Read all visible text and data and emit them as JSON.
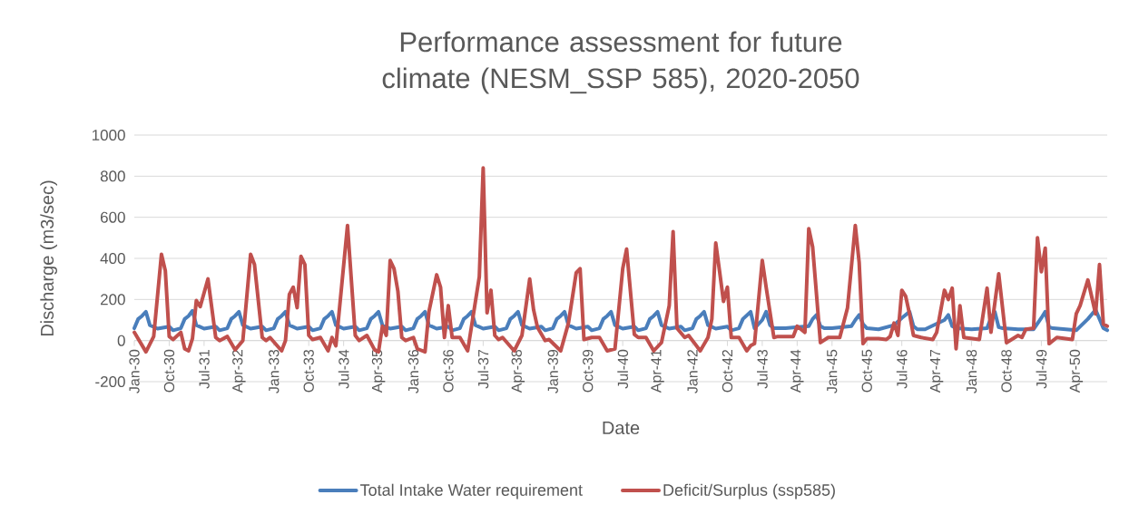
{
  "chart_data": {
    "type": "line",
    "title": "Performance assessment for future climate (NESM_SSP 585), 2020-2050",
    "xlabel": "Date",
    "ylabel": "Discharge (m3/sec)",
    "xlim": [
      "2030-01",
      "2050-12"
    ],
    "ylim": [
      -200,
      1000
    ],
    "xticks": [
      {
        "value": "2030-01",
        "label": "Jan-30"
      },
      {
        "value": "2030-10",
        "label": "Oct-30"
      },
      {
        "value": "2031-07",
        "label": "Jul-31"
      },
      {
        "value": "2032-04",
        "label": "Apr-32"
      },
      {
        "value": "2033-01",
        "label": "Jan-33"
      },
      {
        "value": "2033-10",
        "label": "Oct-33"
      },
      {
        "value": "2034-07",
        "label": "Jul-34"
      },
      {
        "value": "2035-04",
        "label": "Apr-35"
      },
      {
        "value": "2036-01",
        "label": "Jan-36"
      },
      {
        "value": "2036-10",
        "label": "Oct-36"
      },
      {
        "value": "2037-07",
        "label": "Jul-37"
      },
      {
        "value": "2038-04",
        "label": "Apr-38"
      },
      {
        "value": "2039-01",
        "label": "Jan-39"
      },
      {
        "value": "2039-10",
        "label": "Oct-39"
      },
      {
        "value": "2040-07",
        "label": "Jul-40"
      },
      {
        "value": "2041-04",
        "label": "Apr-41"
      },
      {
        "value": "2042-01",
        "label": "Jan-42"
      },
      {
        "value": "2042-10",
        "label": "Oct-42"
      },
      {
        "value": "2043-07",
        "label": "Jul-43"
      },
      {
        "value": "2044-04",
        "label": "Apr-44"
      },
      {
        "value": "2045-01",
        "label": "Jan-45"
      },
      {
        "value": "2045-10",
        "label": "Oct-45"
      },
      {
        "value": "2046-07",
        "label": "Jul-46"
      },
      {
        "value": "2047-04",
        "label": "Apr-47"
      },
      {
        "value": "2048-01",
        "label": "Jan-48"
      },
      {
        "value": "2048-10",
        "label": "Oct-48"
      },
      {
        "value": "2049-07",
        "label": "Jul-49"
      },
      {
        "value": "2050-04",
        "label": "Apr-50"
      }
    ],
    "yticks": [
      -200,
      0,
      200,
      400,
      600,
      800,
      1000
    ],
    "grid": "y",
    "legend": "bottom",
    "series": [
      {
        "name": "Total Intake Water requirement",
        "color": "#4a7ebb",
        "x": [
          "2030-01",
          "2030-02",
          "2030-03",
          "2030-04",
          "2030-05",
          "2030-07",
          "2030-10",
          "2030-11",
          "2031-01",
          "2031-02",
          "2031-03",
          "2031-04",
          "2031-05",
          "2031-07",
          "2031-10",
          "2031-11",
          "2032-01",
          "2032-02",
          "2032-03",
          "2032-04",
          "2032-05",
          "2032-07",
          "2032-10",
          "2032-11",
          "2033-01",
          "2033-02",
          "2033-03",
          "2033-04",
          "2033-05",
          "2033-07",
          "2033-10",
          "2033-11",
          "2034-01",
          "2034-02",
          "2034-03",
          "2034-04",
          "2034-05",
          "2034-07",
          "2034-10",
          "2034-11",
          "2035-01",
          "2035-02",
          "2035-03",
          "2035-04",
          "2035-05",
          "2035-07",
          "2035-10",
          "2035-11",
          "2036-01",
          "2036-02",
          "2036-03",
          "2036-04",
          "2036-05",
          "2036-07",
          "2036-10",
          "2036-11",
          "2037-01",
          "2037-02",
          "2037-03",
          "2037-04",
          "2037-05",
          "2037-07",
          "2037-10",
          "2037-11",
          "2038-01",
          "2038-02",
          "2038-03",
          "2038-04",
          "2038-05",
          "2038-07",
          "2038-10",
          "2038-11",
          "2039-01",
          "2039-02",
          "2039-03",
          "2039-04",
          "2039-05",
          "2039-07",
          "2039-10",
          "2039-11",
          "2040-01",
          "2040-02",
          "2040-03",
          "2040-04",
          "2040-05",
          "2040-07",
          "2040-10",
          "2040-11",
          "2041-01",
          "2041-02",
          "2041-03",
          "2041-04",
          "2041-05",
          "2041-07",
          "2041-10",
          "2041-11",
          "2042-01",
          "2042-02",
          "2042-03",
          "2042-04",
          "2042-05",
          "2042-07",
          "2042-10",
          "2042-11",
          "2043-01",
          "2043-02",
          "2043-04",
          "2043-05",
          "2043-07",
          "2043-08",
          "2043-09",
          "2043-10",
          "2044-01",
          "2044-07",
          "2044-08",
          "2044-09",
          "2044-10",
          "2044-11",
          "2045-01",
          "2045-06",
          "2045-07",
          "2045-08",
          "2045-09",
          "2045-10",
          "2046-01",
          "2046-05",
          "2046-07",
          "2046-09",
          "2046-10",
          "2046-11",
          "2047-01",
          "2047-06",
          "2047-07",
          "2047-08",
          "2047-09",
          "2048-01",
          "2048-05",
          "2048-06",
          "2048-07",
          "2048-08",
          "2048-09",
          "2049-01",
          "2049-05",
          "2049-07",
          "2049-08",
          "2049-09",
          "2049-10",
          "2050-01",
          "2050-04",
          "2050-07",
          "2050-09",
          "2050-11",
          "2050-12"
        ],
        "values": [
          60,
          105,
          120,
          140,
          75,
          58,
          68,
          50,
          60,
          105,
          120,
          145,
          75,
          58,
          68,
          50,
          60,
          105,
          120,
          140,
          75,
          58,
          68,
          50,
          60,
          105,
          120,
          140,
          75,
          58,
          68,
          50,
          60,
          105,
          120,
          140,
          75,
          58,
          68,
          50,
          60,
          105,
          120,
          140,
          75,
          58,
          68,
          50,
          60,
          105,
          120,
          140,
          75,
          58,
          68,
          50,
          60,
          105,
          120,
          140,
          75,
          58,
          68,
          50,
          60,
          105,
          120,
          140,
          75,
          58,
          68,
          50,
          60,
          105,
          120,
          140,
          75,
          58,
          68,
          50,
          60,
          105,
          120,
          140,
          75,
          58,
          68,
          50,
          60,
          105,
          120,
          140,
          75,
          58,
          68,
          50,
          60,
          105,
          120,
          140,
          75,
          58,
          68,
          50,
          60,
          105,
          140,
          60,
          100,
          140,
          75,
          60,
          60,
          70,
          105,
          125,
          70,
          60,
          60,
          70,
          100,
          125,
          80,
          60,
          55,
          75,
          110,
          140,
          70,
          55,
          55,
          100,
          125,
          70,
          60,
          55,
          60,
          110,
          140,
          65,
          60,
          55,
          55,
          110,
          140,
          65,
          60,
          55,
          50,
          105,
          150,
          60,
          50
        ]
      },
      {
        "name": "Deficit/Surplus (ssp585)",
        "color": "#c0504d",
        "x": [
          "2030-01",
          "2030-04",
          "2030-06",
          "2030-08",
          "2030-09",
          "2030-10",
          "2030-11",
          "2031-01",
          "2031-02",
          "2031-03",
          "2031-04",
          "2031-05",
          "2031-06",
          "2031-08",
          "2031-10",
          "2031-11",
          "2032-01",
          "2032-03",
          "2032-05",
          "2032-07",
          "2032-08",
          "2032-10",
          "2032-11",
          "2032-12",
          "2033-03",
          "2033-04",
          "2033-05",
          "2033-06",
          "2033-07",
          "2033-08",
          "2033-09",
          "2033-10",
          "2033-11",
          "2034-01",
          "2034-03",
          "2034-04",
          "2034-05",
          "2034-08",
          "2034-10",
          "2034-11",
          "2035-01",
          "2035-03",
          "2035-04",
          "2035-05",
          "2035-06",
          "2035-07",
          "2035-08",
          "2035-09",
          "2035-10",
          "2035-11",
          "2036-01",
          "2036-02",
          "2036-04",
          "2036-05",
          "2036-07",
          "2036-08",
          "2036-09",
          "2036-10",
          "2036-11",
          "2037-01",
          "2037-03",
          "2037-06",
          "2037-07",
          "2037-08",
          "2037-09",
          "2037-10",
          "2037-11",
          "2037-12",
          "2038-03",
          "2038-05",
          "2038-07",
          "2038-08",
          "2038-09",
          "2038-11",
          "2038-12",
          "2039-03",
          "2039-05",
          "2039-07",
          "2039-08",
          "2039-09",
          "2039-11",
          "2040-01",
          "2040-03",
          "2040-05",
          "2040-07",
          "2040-08",
          "2040-10",
          "2040-11",
          "2041-01",
          "2041-03",
          "2041-05",
          "2041-07",
          "2041-08",
          "2041-09",
          "2041-11",
          "2041-12",
          "2042-03",
          "2042-05",
          "2042-06",
          "2042-07",
          "2042-08",
          "2042-09",
          "2042-10",
          "2042-11",
          "2043-01",
          "2043-03",
          "2043-04",
          "2043-05",
          "2043-07",
          "2043-08",
          "2043-10",
          "2043-11",
          "2044-03",
          "2044-04",
          "2044-06",
          "2044-07",
          "2044-08",
          "2044-10",
          "2044-12",
          "2045-03",
          "2045-05",
          "2045-07",
          "2045-08",
          "2045-09",
          "2045-10",
          "2046-01",
          "2046-03",
          "2046-04",
          "2046-05",
          "2046-06",
          "2046-07",
          "2046-08",
          "2046-09",
          "2046-10",
          "2046-12",
          "2047-03",
          "2047-04",
          "2047-06",
          "2047-07",
          "2047-08",
          "2047-09",
          "2047-10",
          "2047-11",
          "2048-03",
          "2048-05",
          "2048-06",
          "2048-08",
          "2048-10",
          "2049-01",
          "2049-02",
          "2049-03",
          "2049-05",
          "2049-06",
          "2049-07",
          "2049-08",
          "2049-09",
          "2049-11",
          "2050-03",
          "2050-04",
          "2050-05",
          "2050-07",
          "2050-09",
          "2050-10",
          "2050-11",
          "2050-12"
        ],
        "values": [
          40,
          -55,
          20,
          420,
          340,
          20,
          5,
          40,
          -40,
          -50,
          10,
          195,
          165,
          300,
          15,
          0,
          20,
          -45,
          0,
          420,
          370,
          15,
          0,
          15,
          -50,
          0,
          225,
          260,
          160,
          410,
          370,
          25,
          5,
          15,
          -50,
          15,
          -25,
          560,
          25,
          0,
          25,
          -45,
          -55,
          70,
          25,
          390,
          350,
          240,
          15,
          0,
          15,
          -40,
          -55,
          140,
          320,
          260,
          15,
          170,
          15,
          15,
          -50,
          310,
          840,
          135,
          245,
          25,
          5,
          15,
          -50,
          25,
          300,
          150,
          65,
          0,
          5,
          -50,
          85,
          330,
          350,
          5,
          15,
          15,
          -50,
          -40,
          350,
          445,
          30,
          15,
          15,
          -50,
          -10,
          170,
          530,
          60,
          15,
          25,
          -50,
          15,
          105,
          475,
          335,
          190,
          260,
          15,
          15,
          -50,
          -25,
          -15,
          390,
          260,
          15,
          20,
          20,
          70,
          40,
          545,
          455,
          -10,
          15,
          15,
          160,
          560,
          380,
          -15,
          10,
          10,
          5,
          20,
          85,
          25,
          245,
          215,
          130,
          25,
          15,
          5,
          40,
          245,
          200,
          255,
          -40,
          170,
          15,
          5,
          255,
          40,
          325,
          -10,
          25,
          15,
          55,
          60,
          500,
          335,
          450,
          -15,
          15,
          5,
          130,
          170,
          295,
          130,
          370,
          80,
          70
        ]
      }
    ]
  }
}
